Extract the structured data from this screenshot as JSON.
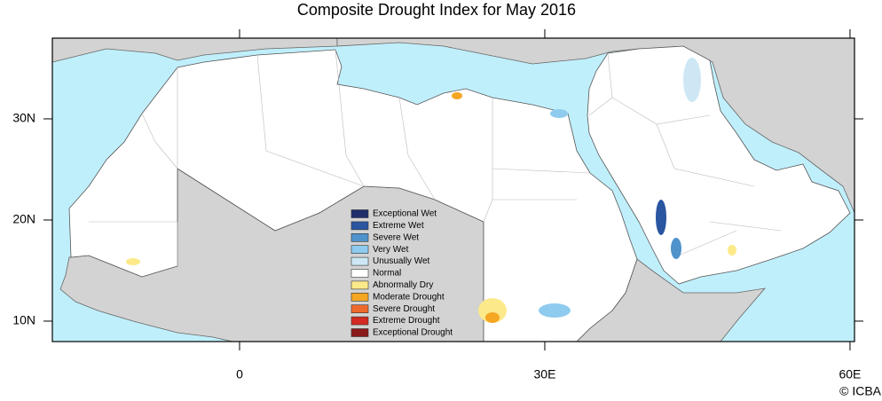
{
  "title": "Composite Drought Index for May 2016",
  "map": {
    "lonlim": [
      -18.4,
      60.44
    ],
    "latlim": [
      7.98,
      37.98
    ],
    "lonticks": [
      0,
      {
        "value": 30,
        "label": "30E"
      },
      {
        "value": 60,
        "label": "60E"
      }
    ],
    "latticks": [
      {
        "value": 10,
        "label": "10N"
      },
      {
        "value": 20,
        "label": "20N"
      },
      {
        "value": 30,
        "label": "30N"
      }
    ]
  },
  "legend": {
    "items": [
      {
        "label": "Exceptional Wet",
        "color": "#1f2d6b"
      },
      {
        "label": "Extreme Wet",
        "color": "#2a55a0"
      },
      {
        "label": "Severe Wet",
        "color": "#4f93cc"
      },
      {
        "label": "Very Wet",
        "color": "#8fcbee"
      },
      {
        "label": "Unusually Wet",
        "color": "#cde8f4"
      },
      {
        "label": "Normal",
        "color": "#ffffff"
      },
      {
        "label": "Abnormally Dry",
        "color": "#fce98a"
      },
      {
        "label": "Moderate Drought",
        "color": "#f5a623"
      },
      {
        "label": "Severe Drought",
        "color": "#ee6a2c"
      },
      {
        "label": "Extreme Drought",
        "color": "#d22a22"
      },
      {
        "label": "Exceptional Drought",
        "color": "#8b1a1a"
      }
    ]
  },
  "credit": "© ICBA"
}
